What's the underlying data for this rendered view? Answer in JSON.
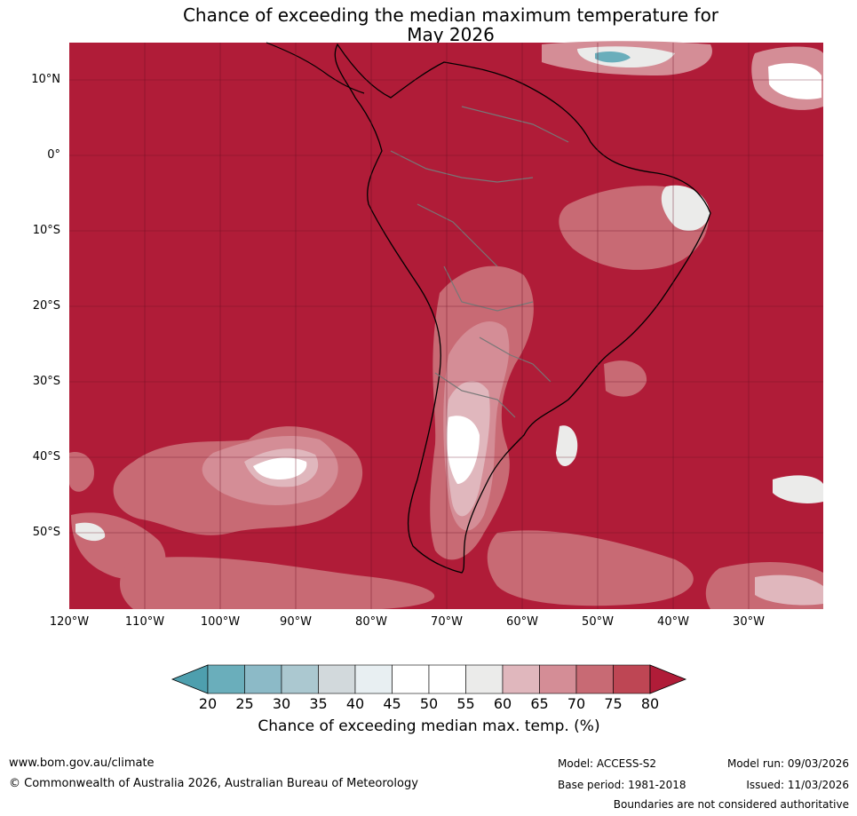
{
  "title": {
    "line1": "Chance of exceeding the median maximum temperature for",
    "line2": "May 2026"
  },
  "map": {
    "region": "South America",
    "lat_labels": [
      "10°N",
      "0°",
      "10°S",
      "20°S",
      "30°S",
      "40°S",
      "50°S"
    ],
    "lon_labels": [
      "120°W",
      "110°W",
      "100°W",
      "90°W",
      "80°W",
      "70°W",
      "60°W",
      "50°W",
      "40°W",
      "30°W"
    ]
  },
  "legend": {
    "ticks": [
      "20",
      "25",
      "30",
      "35",
      "40",
      "45",
      "50",
      "55",
      "60",
      "65",
      "70",
      "75",
      "80"
    ],
    "colors": [
      "#4e9fae",
      "#6aaebb",
      "#8cbac7",
      "#abc8d0",
      "#d2d9dc",
      "#e8eff2",
      "#ffffff",
      "#ffffff",
      "#ebebea",
      "#e0b7bd",
      "#d48d96",
      "#c86a74",
      "#be4654",
      "#b01c38"
    ],
    "label": "Chance of exceeding median max. temp. (%)"
  },
  "footer": {
    "url": "www.bom.gov.au/climate",
    "copyright": "© Commonwealth of Australia 2026, Australian Bureau of Meteorology",
    "model": "Model: ACCESS-S2",
    "base_period": "Base period: 1981-2018",
    "model_run": "Model run: 09/03/2026",
    "issued": "Issued: 11/03/2026",
    "disclaimer": "Boundaries are not considered authoritative"
  }
}
